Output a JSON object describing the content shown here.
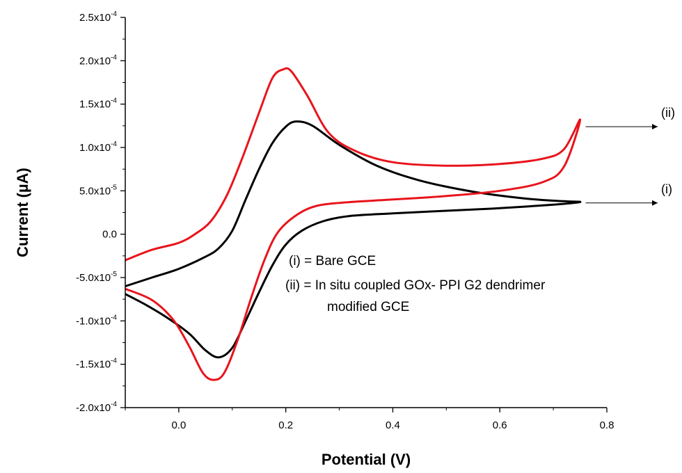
{
  "chart_data": {
    "type": "line",
    "title": "",
    "xlabel": "Potential (V)",
    "ylabel": "Current (µA)",
    "xlim": [
      -0.1,
      0.8
    ],
    "ylim": [
      -0.0002,
      0.00025
    ],
    "x_ticks": [
      {
        "value": 0.0,
        "label": "0.0"
      },
      {
        "value": 0.2,
        "label": "0.2"
      },
      {
        "value": 0.4,
        "label": "0.4"
      },
      {
        "value": 0.6,
        "label": "0.6"
      },
      {
        "value": 0.8,
        "label": "0.8"
      }
    ],
    "y_ticks": [
      {
        "value": 0.00025,
        "mantissa": "2.5x10",
        "exp": "-4"
      },
      {
        "value": 0.0002,
        "mantissa": "2.0x10",
        "exp": "-4"
      },
      {
        "value": 0.00015,
        "mantissa": "1.5x10",
        "exp": "-4"
      },
      {
        "value": 0.0001,
        "mantissa": "1.0x10",
        "exp": "-4"
      },
      {
        "value": 5e-05,
        "mantissa": "5.0x10",
        "exp": "-5"
      },
      {
        "value": 0.0,
        "mantissa": "0.0",
        "exp": ""
      },
      {
        "value": -5e-05,
        "mantissa": "-5.0x10",
        "exp": "-5"
      },
      {
        "value": -0.0001,
        "mantissa": "-1.0x10",
        "exp": "-4"
      },
      {
        "value": -0.00015,
        "mantissa": "-1.5x10",
        "exp": "-4"
      },
      {
        "value": -0.0002,
        "mantissa": "-2.0x10",
        "exp": "-4"
      }
    ],
    "grid": false,
    "legend": {
      "placement": "center",
      "lines": [
        "(i) = Bare GCE",
        "(ii) = In situ coupled GOx- PPI G2 dendrimer",
        "modified GCE"
      ]
    },
    "series": [
      {
        "label": "(i)",
        "color": "#000000",
        "points": [
          [
            -0.1,
            -6.9e-05
          ],
          [
            -0.06,
            -8.2e-05
          ],
          [
            -0.02,
            -9.7e-05
          ],
          [
            0.02,
            -0.000115
          ],
          [
            0.05,
            -0.000134
          ],
          [
            0.075,
            -0.000142
          ],
          [
            0.1,
            -0.000131
          ],
          [
            0.125,
            -0.0001
          ],
          [
            0.15,
            -6.7e-05
          ],
          [
            0.175,
            -3.6e-05
          ],
          [
            0.2,
            -1.2e-05
          ],
          [
            0.23,
            4e-06
          ],
          [
            0.27,
            1.5e-05
          ],
          [
            0.32,
            2.1e-05
          ],
          [
            0.4,
            2.4e-05
          ],
          [
            0.5,
            2.7e-05
          ],
          [
            0.6,
            3e-05
          ],
          [
            0.7,
            3.4e-05
          ],
          [
            0.75,
            3.7e-05
          ],
          [
            0.72,
            3.8e-05
          ],
          [
            0.65,
            4.1e-05
          ],
          [
            0.55,
            4.9e-05
          ],
          [
            0.45,
            6.2e-05
          ],
          [
            0.37,
            7.9e-05
          ],
          [
            0.3,
            0.000103
          ],
          [
            0.25,
            0.000125
          ],
          [
            0.22,
            0.00013
          ],
          [
            0.2,
            0.000124
          ],
          [
            0.175,
            0.000105
          ],
          [
            0.15,
            7.5e-05
          ],
          [
            0.125,
            4e-05
          ],
          [
            0.1,
            4e-06
          ],
          [
            0.075,
            -1.6e-05
          ],
          [
            0.05,
            -2.6e-05
          ],
          [
            0.0,
            -4e-05
          ],
          [
            -0.05,
            -5e-05
          ],
          [
            -0.1,
            -6e-05
          ]
        ]
      },
      {
        "label": "(ii)",
        "color": "#e8141c",
        "points": [
          [
            -0.1,
            -6.3e-05
          ],
          [
            -0.05,
            -7.6e-05
          ],
          [
            -0.01,
            -9.9e-05
          ],
          [
            0.02,
            -0.00013
          ],
          [
            0.045,
            -0.00016
          ],
          [
            0.065,
            -0.000168
          ],
          [
            0.085,
            -0.00016
          ],
          [
            0.11,
            -0.000122
          ],
          [
            0.135,
            -7.4e-05
          ],
          [
            0.16,
            -3e-05
          ],
          [
            0.185,
            2e-06
          ],
          [
            0.22,
            2.2e-05
          ],
          [
            0.26,
            3.3e-05
          ],
          [
            0.32,
            3.7e-05
          ],
          [
            0.4,
            4e-05
          ],
          [
            0.5,
            4.4e-05
          ],
          [
            0.6,
            5e-05
          ],
          [
            0.68,
            6e-05
          ],
          [
            0.72,
            7.8e-05
          ],
          [
            0.75,
            0.000132
          ],
          [
            0.72,
            9.8e-05
          ],
          [
            0.68,
            8.7e-05
          ],
          [
            0.6,
            8.1e-05
          ],
          [
            0.5,
            7.9e-05
          ],
          [
            0.4,
            8.3e-05
          ],
          [
            0.33,
            9.6e-05
          ],
          [
            0.28,
            0.000117
          ],
          [
            0.24,
            0.00016
          ],
          [
            0.21,
            0.000188
          ],
          [
            0.195,
            0.00019
          ],
          [
            0.175,
            0.00018
          ],
          [
            0.15,
            0.00014
          ],
          [
            0.12,
            9e-05
          ],
          [
            0.09,
            4.5e-05
          ],
          [
            0.06,
            1.5e-05
          ],
          [
            0.03,
            0.0
          ],
          [
            0.0,
            -1e-05
          ],
          [
            -0.05,
            -1.8e-05
          ],
          [
            -0.1,
            -3e-05
          ]
        ]
      }
    ],
    "annotations": [
      {
        "text": "(ii)",
        "y": 0.000124,
        "arrow_from_x": 0.75
      },
      {
        "text": "(i)",
        "y": 3.6e-05,
        "arrow_from_x": 0.75
      }
    ]
  }
}
